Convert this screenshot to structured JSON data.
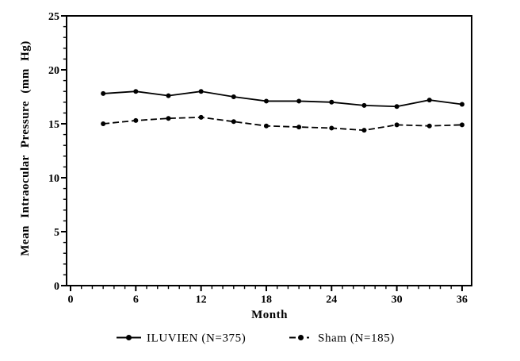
{
  "figure": {
    "background": "#ffffff",
    "foreground": "#000000"
  },
  "chart_data": {
    "type": "line",
    "title": "",
    "xlabel": "Month",
    "ylabel": "Mean Intraocular Pressure (mm Hg)",
    "x": [
      3,
      6,
      9,
      12,
      15,
      18,
      21,
      24,
      27,
      30,
      33,
      36
    ],
    "series": [
      {
        "name": "ILUVIEN (N=375)",
        "line_style": "solid",
        "marker": "filled-circle",
        "values": [
          17.8,
          18.0,
          17.6,
          18.0,
          17.5,
          17.1,
          17.1,
          17.0,
          16.7,
          16.6,
          17.2,
          16.8
        ]
      },
      {
        "name": "Sham (N=185)",
        "line_style": "dash-dot",
        "marker": "filled-circle",
        "values": [
          15.0,
          15.3,
          15.5,
          15.6,
          15.2,
          14.8,
          14.7,
          14.6,
          14.4,
          14.9,
          14.8,
          14.9
        ]
      }
    ],
    "xlim": [
      0,
      37
    ],
    "ylim": [
      0,
      25
    ],
    "x_major_ticks": [
      0,
      6,
      12,
      18,
      24,
      30,
      36
    ],
    "x_minor_tick_step": 1,
    "y_major_ticks": [
      0,
      5,
      10,
      15,
      20,
      25
    ],
    "y_minor_tick_step": 1,
    "grid": false,
    "legend_position": "bottom"
  }
}
